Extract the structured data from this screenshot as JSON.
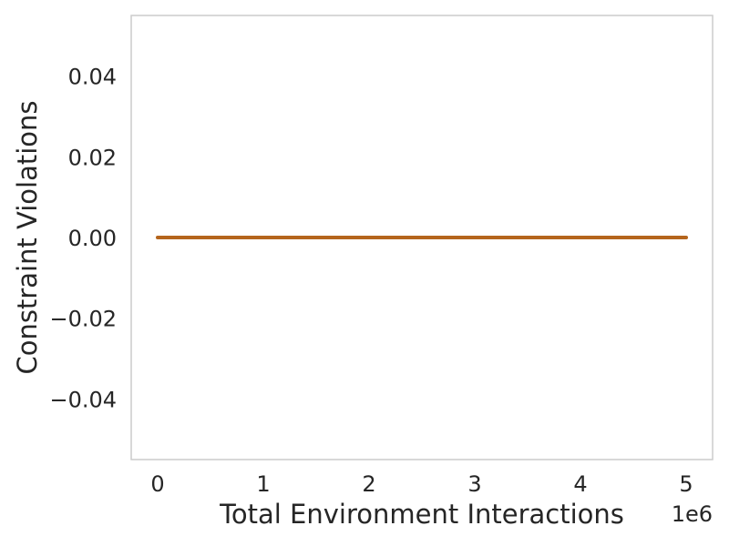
{
  "chart_data": {
    "type": "line",
    "title": "",
    "xlabel": "Total Environment Interactions",
    "ylabel": "Constraint Violations",
    "x_offset_label": "1e6",
    "xlim": [
      -0.25,
      5.25
    ],
    "ylim": [
      -0.055,
      0.055
    ],
    "x_ticks": [
      0,
      1,
      2,
      3,
      4,
      5
    ],
    "x_tick_labels": [
      "0",
      "1",
      "2",
      "3",
      "4",
      "5"
    ],
    "y_ticks": [
      0.04,
      0.02,
      0.0,
      -0.02,
      -0.04
    ],
    "y_tick_labels": [
      "0.04",
      "0.02",
      "0.00",
      "−0.02",
      "−0.04"
    ],
    "grid": false,
    "legend": "none",
    "series": [
      {
        "color": "#b5651d",
        "x": [
          0,
          1,
          2,
          3,
          4,
          5
        ],
        "y": [
          0,
          0,
          0,
          0,
          0,
          0
        ]
      }
    ]
  }
}
